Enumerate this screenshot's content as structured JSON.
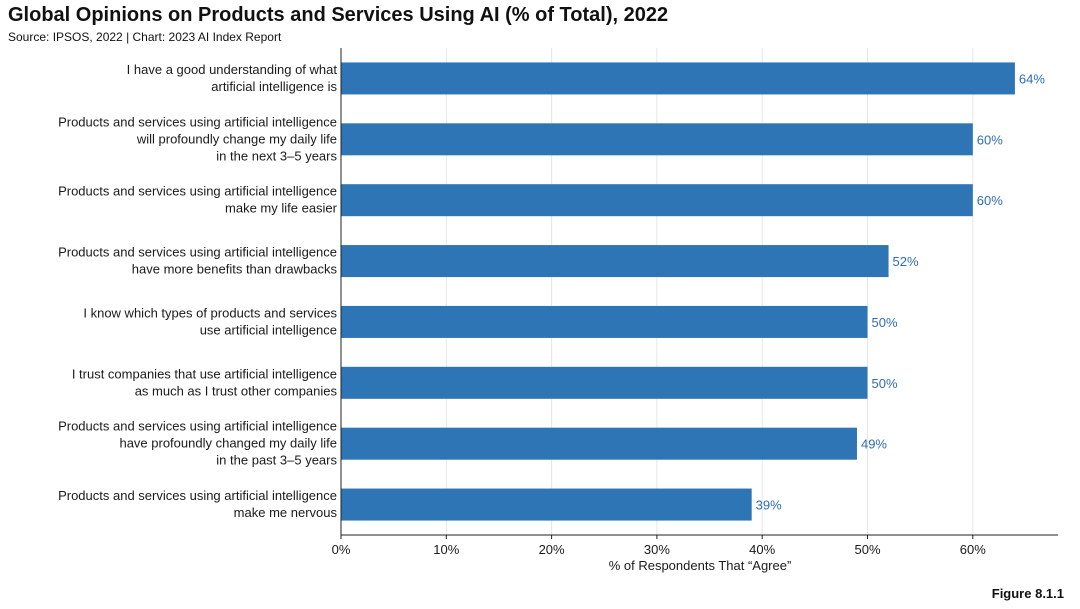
{
  "header": {
    "title": "Global Opinions on Products and Services Using AI (% of Total), 2022",
    "subtitle": "Source: IPSOS, 2022 | Chart: 2023 AI Index Report"
  },
  "footer": {
    "figure_label": "Figure 8.1.1"
  },
  "chart_data": {
    "type": "bar",
    "orientation": "horizontal",
    "title": "Global Opinions on Products and Services Using AI (% of Total), 2022",
    "subtitle": "Source: IPSOS, 2022 | Chart: 2023 AI Index Report",
    "xlabel": "% of Respondents That “Agree”",
    "ylabel": "",
    "xlim": [
      0,
      68
    ],
    "xticks": [
      0,
      10,
      20,
      30,
      40,
      50,
      60
    ],
    "xtick_labels": [
      "0%",
      "10%",
      "20%",
      "30%",
      "40%",
      "50%",
      "60%"
    ],
    "grid": true,
    "bar_color": "#2e75b6",
    "value_label_color": "#2e6db4",
    "categories": [
      [
        "I have a good understanding of what",
        "artificial intelligence is"
      ],
      [
        "Products and services using artificial intelligence",
        "will profoundly change my daily life",
        "in the next 3–5 years"
      ],
      [
        "Products and services using artificial intelligence",
        "make my life easier"
      ],
      [
        "Products and services using artificial intelligence",
        "have more benefits than drawbacks"
      ],
      [
        "I know which types of products and services",
        "use artificial intelligence"
      ],
      [
        "I trust companies that use artificial intelligence",
        "as much as I trust other companies"
      ],
      [
        "Products and services using artificial intelligence",
        "have profoundly changed my daily life",
        "in the past 3–5 years"
      ],
      [
        "Products and services using artificial intelligence",
        "make me nervous"
      ]
    ],
    "values": [
      64,
      60,
      60,
      52,
      50,
      50,
      49,
      39
    ],
    "value_labels": [
      "64%",
      "60%",
      "60%",
      "52%",
      "50%",
      "50%",
      "49%",
      "39%"
    ]
  }
}
